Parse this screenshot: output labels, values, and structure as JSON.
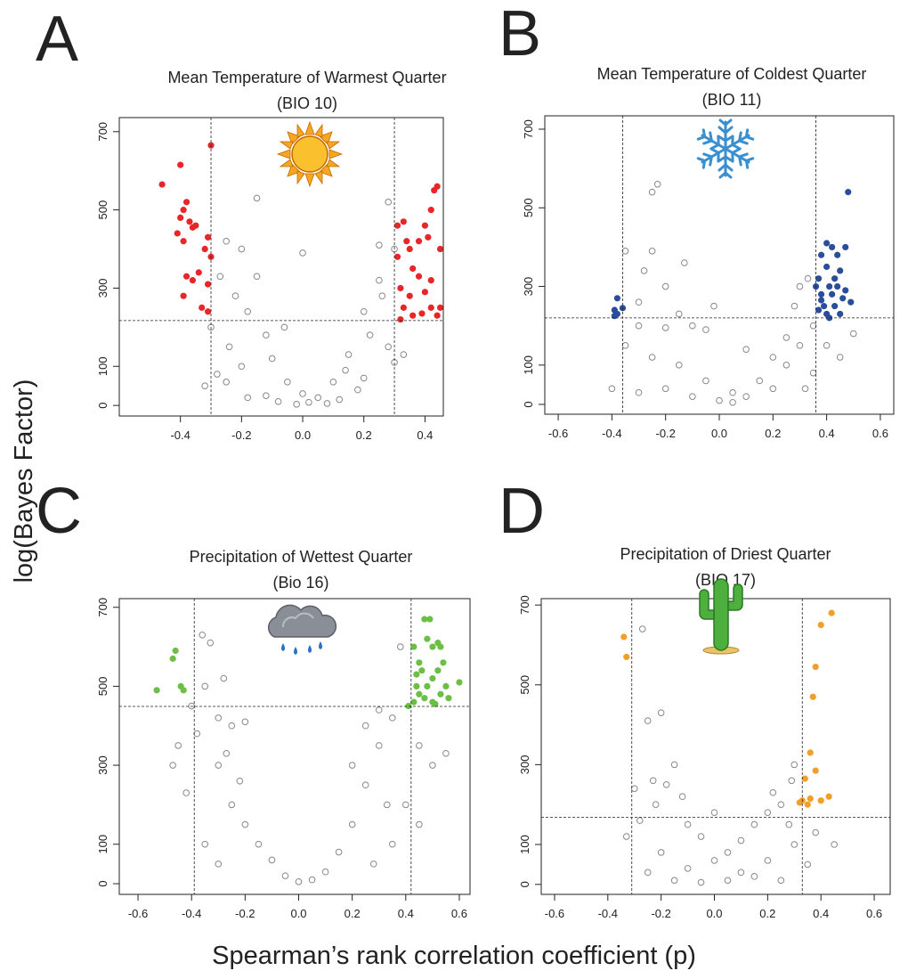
{
  "y_label": "log(Bayes Factor)",
  "x_label": "Spearman’s rank correlation coefficient (p)",
  "chart_data": [
    {
      "type": "scatter",
      "panel_label": "A",
      "title": [
        "Mean Temperature of Warmest Quarter",
        "(BIO 10)"
      ],
      "xlim": [
        -0.6,
        0.46
      ],
      "ylim": [
        -27,
        736
      ],
      "xticks": [
        -0.4,
        -0.2,
        {
          "value": 0,
          "label": "0.0"
        },
        0.2,
        0.4
      ],
      "yticks": [
        0,
        100,
        300,
        500,
        700
      ],
      "vlines": [
        -0.3,
        0.3
      ],
      "hline": 217,
      "series": [
        {
          "color": "#888888",
          "filled": false,
          "x": [
            -0.3,
            -0.25,
            -0.2,
            -0.15,
            -0.22,
            -0.18,
            -0.27,
            -0.12,
            -0.1,
            -0.05,
            0.0,
            0.05,
            -0.2,
            -0.25,
            -0.15,
            0.0,
            0.25,
            0.28,
            0.3,
            0.25,
            0.2,
            0.22,
            0.15,
            0.1,
            0.28,
            -0.28,
            -0.08,
            0.08,
            0.18,
            -0.18,
            0.26,
            -0.24,
            0.3,
            -0.32,
            0.33,
            0.12,
            -0.12,
            0.02,
            -0.02,
            0.2,
            -0.06,
            0.14
          ],
          "values": [
            200,
            420,
            400,
            330,
            280,
            240,
            330,
            180,
            120,
            60,
            30,
            20,
            100,
            60,
            530,
            390,
            410,
            520,
            400,
            320,
            240,
            180,
            130,
            60,
            150,
            80,
            10,
            5,
            40,
            20,
            280,
            150,
            110,
            50,
            130,
            15,
            25,
            8,
            3,
            70,
            200,
            90
          ]
        },
        {
          "color": "#e8262a",
          "filled": true,
          "x": [
            -0.46,
            -0.4,
            -0.38,
            -0.39,
            -0.4,
            -0.41,
            -0.37,
            -0.36,
            -0.35,
            -0.39,
            -0.38,
            -0.39,
            -0.36,
            -0.34,
            -0.32,
            -0.31,
            -0.3,
            -0.31,
            -0.33,
            -0.31,
            -0.3,
            0.31,
            0.33,
            0.34,
            0.35,
            0.31,
            0.36,
            0.38,
            0.32,
            0.35,
            0.4,
            0.42,
            0.44,
            0.43,
            0.42,
            0.41,
            0.45,
            0.38,
            0.4,
            0.33,
            0.36,
            0.42,
            0.45,
            0.32,
            0.39,
            0.44
          ],
          "values": [
            565,
            615,
            520,
            500,
            480,
            440,
            470,
            455,
            460,
            420,
            330,
            280,
            320,
            340,
            400,
            430,
            380,
            310,
            250,
            240,
            665,
            460,
            470,
            420,
            400,
            380,
            350,
            330,
            300,
            280,
            290,
            320,
            560,
            550,
            500,
            430,
            400,
            420,
            460,
            250,
            230,
            250,
            250,
            220,
            235,
            230
          ]
        }
      ]
    },
    {
      "type": "scatter",
      "panel_label": "B",
      "title": [
        "Mean Temperature of Coldest Quarter",
        "(BIO 11)"
      ],
      "xlim": [
        -0.65,
        0.65
      ],
      "ylim": [
        -25,
        734
      ],
      "xticks": [
        -0.6,
        -0.4,
        -0.2,
        {
          "value": 0,
          "label": "0.0"
        },
        0.2,
        0.4,
        0.6
      ],
      "yticks": [
        0,
        100,
        300,
        500,
        700
      ],
      "vlines": [
        -0.36,
        0.36
      ],
      "hline": 220,
      "series": [
        {
          "color": "#888888",
          "filled": false,
          "x": [
            -0.25,
            -0.23,
            -0.35,
            -0.25,
            -0.28,
            -0.2,
            -0.3,
            -0.15,
            -0.3,
            -0.2,
            -0.1,
            -0.05,
            -0.35,
            -0.25,
            -0.15,
            -0.05,
            0.05,
            0.1,
            0.15,
            0.2,
            0.25,
            0.28,
            0.3,
            0.33,
            0.35,
            0.3,
            0.4,
            0.45,
            0.5,
            0.2,
            0.0,
            -0.1,
            -0.2,
            -0.3,
            -0.4,
            -0.13,
            0.25,
            0.35,
            -0.02,
            0.1,
            0.32,
            0.05
          ],
          "values": [
            540,
            560,
            390,
            390,
            340,
            300,
            260,
            230,
            200,
            195,
            200,
            190,
            150,
            120,
            100,
            60,
            30,
            20,
            60,
            120,
            170,
            250,
            300,
            320,
            200,
            150,
            150,
            120,
            180,
            40,
            10,
            20,
            40,
            30,
            40,
            360,
            100,
            80,
            250,
            140,
            40,
            5
          ]
        },
        {
          "color": "#2a4d9c",
          "filled": true,
          "x": [
            -0.38,
            -0.39,
            -0.38,
            -0.36,
            -0.39,
            0.48,
            0.4,
            0.42,
            0.47,
            0.38,
            0.44,
            0.4,
            0.45,
            0.37,
            0.41,
            0.44,
            0.38,
            0.42,
            0.46,
            0.49,
            0.39,
            0.43,
            0.37,
            0.4,
            0.45,
            0.41,
            0.38,
            0.47,
            0.36,
            0.43
          ],
          "values": [
            270,
            240,
            230,
            245,
            225,
            540,
            410,
            400,
            400,
            380,
            380,
            350,
            340,
            320,
            300,
            300,
            280,
            280,
            270,
            260,
            250,
            250,
            240,
            230,
            230,
            220,
            265,
            290,
            300,
            320
          ]
        }
      ]
    },
    {
      "type": "scatter",
      "panel_label": "C",
      "title": [
        "Precipitation of Wettest Quarter",
        "(Bio 16)"
      ],
      "xlim": [
        -0.67,
        0.64
      ],
      "ylim": [
        -27,
        722
      ],
      "xticks": [
        -0.6,
        -0.4,
        -0.2,
        {
          "value": 0,
          "label": "0.0"
        },
        0.2,
        0.4,
        0.6
      ],
      "yticks": [
        0,
        100,
        300,
        500,
        700
      ],
      "vlines": [
        -0.39,
        0.42
      ],
      "hline": 449,
      "series": [
        {
          "color": "#888888",
          "filled": false,
          "x": [
            -0.36,
            -0.33,
            -0.28,
            -0.35,
            -0.4,
            -0.3,
            -0.25,
            -0.2,
            -0.38,
            -0.45,
            -0.47,
            -0.42,
            -0.3,
            -0.25,
            -0.2,
            -0.15,
            -0.1,
            -0.05,
            0.05,
            0.1,
            0.15,
            0.2,
            0.25,
            0.3,
            0.35,
            0.38,
            0.3,
            0.25,
            0.2,
            0.45,
            0.5,
            0.55,
            0.4,
            0.45,
            0.35,
            0.0,
            -0.3,
            -0.35,
            -0.27,
            0.28,
            -0.22,
            0.33
          ],
          "values": [
            630,
            610,
            520,
            500,
            450,
            420,
            400,
            410,
            380,
            350,
            300,
            230,
            300,
            200,
            150,
            100,
            60,
            20,
            10,
            30,
            80,
            150,
            250,
            350,
            420,
            600,
            440,
            400,
            300,
            350,
            300,
            330,
            200,
            150,
            100,
            5,
            50,
            100,
            330,
            50,
            260,
            200
          ]
        },
        {
          "color": "#6cbf45",
          "filled": true,
          "x": [
            -0.53,
            -0.47,
            -0.46,
            -0.44,
            -0.43,
            0.43,
            0.45,
            0.47,
            0.49,
            0.48,
            0.5,
            0.52,
            0.53,
            0.46,
            0.5,
            0.52,
            0.54,
            0.44,
            0.47,
            0.5,
            0.53,
            0.55,
            0.6,
            0.43,
            0.45,
            0.48,
            0.51,
            0.56,
            0.41,
            0.44
          ],
          "values": [
            490,
            570,
            590,
            500,
            490,
            600,
            560,
            670,
            670,
            620,
            600,
            610,
            600,
            540,
            520,
            540,
            560,
            500,
            470,
            460,
            480,
            500,
            510,
            460,
            480,
            500,
            455,
            470,
            450,
            530
          ]
        }
      ]
    },
    {
      "type": "scatter",
      "panel_label": "D",
      "title": [
        "Precipitation of Driest Quarter",
        "(BIO 17)"
      ],
      "xlim": [
        -0.65,
        0.66
      ],
      "ylim": [
        -25,
        716
      ],
      "xticks": [
        -0.6,
        -0.4,
        -0.2,
        {
          "value": 0,
          "label": "0.0"
        },
        0.2,
        0.4,
        0.6
      ],
      "yticks": [
        0,
        100,
        300,
        500,
        700
      ],
      "vlines": [
        -0.31,
        0.33
      ],
      "hline": 168,
      "series": [
        {
          "color": "#888888",
          "filled": false,
          "x": [
            -0.27,
            -0.2,
            -0.25,
            -0.15,
            -0.23,
            -0.18,
            -0.3,
            -0.33,
            -0.22,
            -0.1,
            -0.05,
            0.0,
            0.05,
            0.1,
            0.15,
            0.2,
            0.25,
            0.29,
            0.28,
            0.3,
            0.2,
            0.1,
            -0.1,
            -0.2,
            -0.28,
            0.05,
            -0.05,
            0.15,
            0.35,
            0.45,
            0.38,
            -0.15,
            0.25,
            -0.25,
            0.22,
            0.3,
            -0.12,
            0.0
          ],
          "values": [
            640,
            430,
            410,
            300,
            260,
            250,
            240,
            120,
            200,
            150,
            120,
            60,
            80,
            110,
            150,
            180,
            200,
            260,
            150,
            100,
            60,
            30,
            40,
            80,
            160,
            10,
            5,
            20,
            50,
            100,
            130,
            10,
            10,
            30,
            230,
            300,
            220,
            180
          ]
        },
        {
          "color": "#f0a02a",
          "filled": true,
          "x": [
            -0.34,
            -0.33,
            0.44,
            0.4,
            0.38,
            0.37,
            0.36,
            0.38,
            0.34,
            0.36,
            0.33,
            0.35,
            0.32,
            0.4,
            0.43
          ],
          "values": [
            620,
            570,
            680,
            650,
            545,
            470,
            330,
            285,
            265,
            215,
            210,
            200,
            205,
            210,
            220
          ]
        }
      ]
    }
  ]
}
